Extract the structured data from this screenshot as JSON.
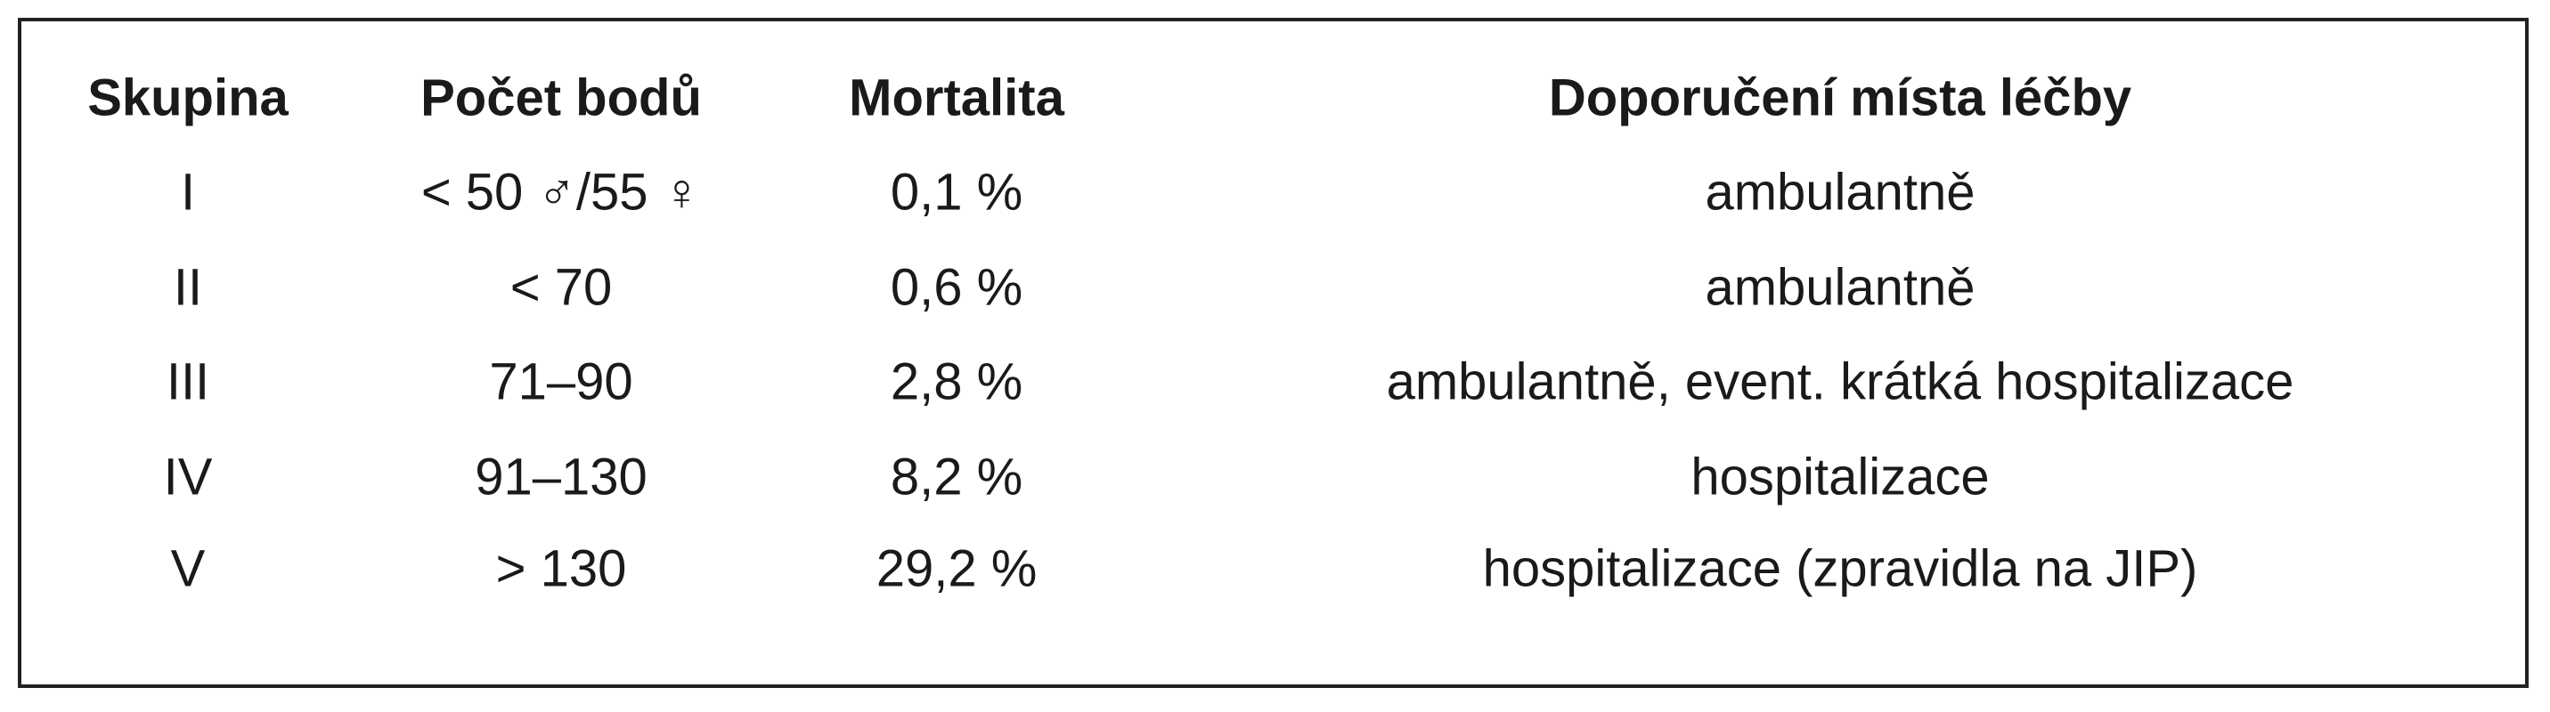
{
  "table": {
    "header": [
      "Skupina",
      "Počet bodů",
      "Mortalita",
      "Doporučení místa léčby"
    ],
    "rows": [
      [
        "I",
        "< 50 ♂/55 ♀",
        "0,1 %",
        "ambulantně"
      ],
      [
        "II",
        "< 70",
        "0,6 %",
        "ambulantně"
      ],
      [
        "III",
        "71–90",
        "2,8 %",
        "ambulantně, event. krátká hospitalizace"
      ],
      [
        "IV",
        "91–130",
        "8,2 %",
        "hospitalizace"
      ],
      [
        "V",
        "> 130",
        "29,2 %",
        "hospitalizace (zpravidla na JIP)"
      ]
    ]
  }
}
